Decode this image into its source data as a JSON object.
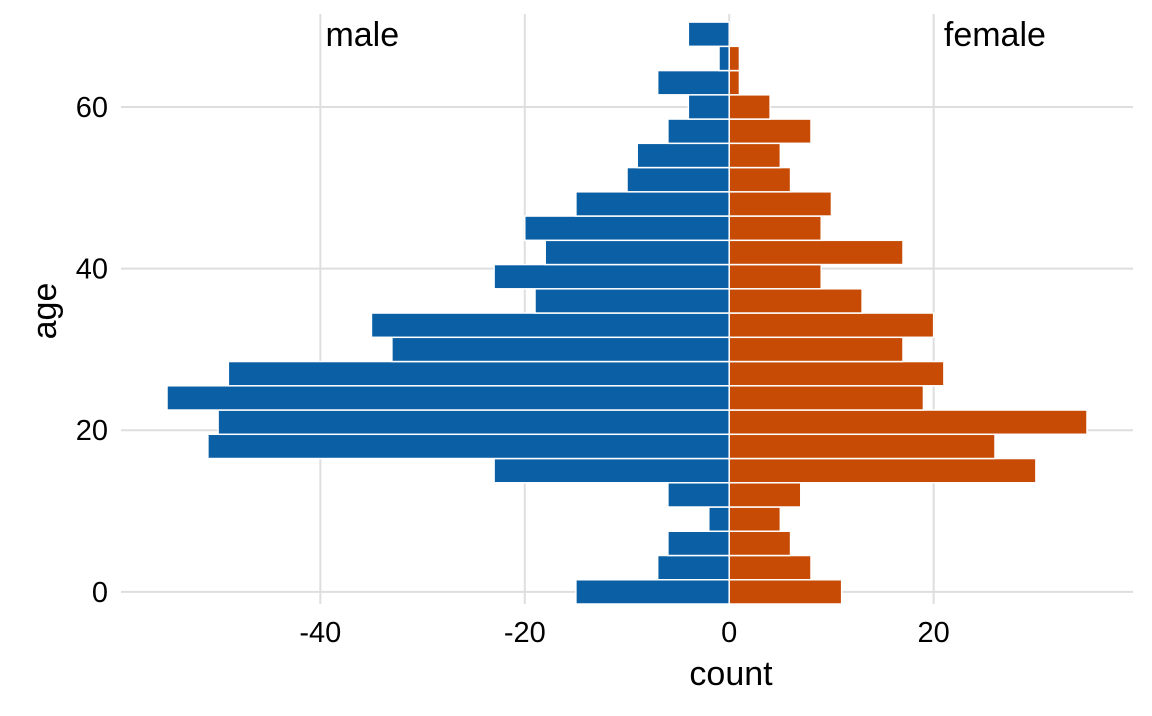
{
  "chart_data": {
    "type": "bar",
    "orientation": "horizontal",
    "xlabel": "count",
    "ylabel": "age",
    "xlim": [
      -59.5,
      39.5
    ],
    "ylim": [
      -1.5,
      71.5
    ],
    "x_ticks": [
      -40,
      -20,
      0,
      20
    ],
    "x_tick_labels": [
      "-40",
      "-20",
      "0",
      "20"
    ],
    "y_ticks": [
      0,
      20,
      40,
      60
    ],
    "y_tick_labels": [
      "0",
      "20",
      "40",
      "60"
    ],
    "grid": true,
    "legend": "none",
    "bin_width": 3,
    "age_bins": [
      0,
      3,
      6,
      9,
      12,
      15,
      18,
      21,
      24,
      27,
      30,
      33,
      36,
      39,
      42,
      45,
      48,
      51,
      54,
      57,
      60,
      63,
      66,
      69
    ],
    "annotations": [
      {
        "text": "male",
        "x": -39.5,
        "y": 69
      },
      {
        "text": "female",
        "x": 21,
        "y": 69
      }
    ],
    "series": [
      {
        "key": "male",
        "color": "#0b5fa5",
        "values": [
          -15,
          -7,
          -6,
          -2,
          -6,
          -23,
          -51,
          -50,
          -55,
          -49,
          -33,
          -35,
          -19,
          -23,
          -18,
          -20,
          -15,
          -10,
          -9,
          -6,
          -4,
          -7,
          -1,
          -4
        ]
      },
      {
        "key": "female",
        "color": "#c84b05",
        "values": [
          11,
          8,
          6,
          5,
          7,
          30,
          26,
          35,
          19,
          21,
          17,
          20,
          13,
          9,
          17,
          9,
          10,
          6,
          5,
          8,
          4,
          1,
          1,
          0
        ]
      }
    ]
  }
}
